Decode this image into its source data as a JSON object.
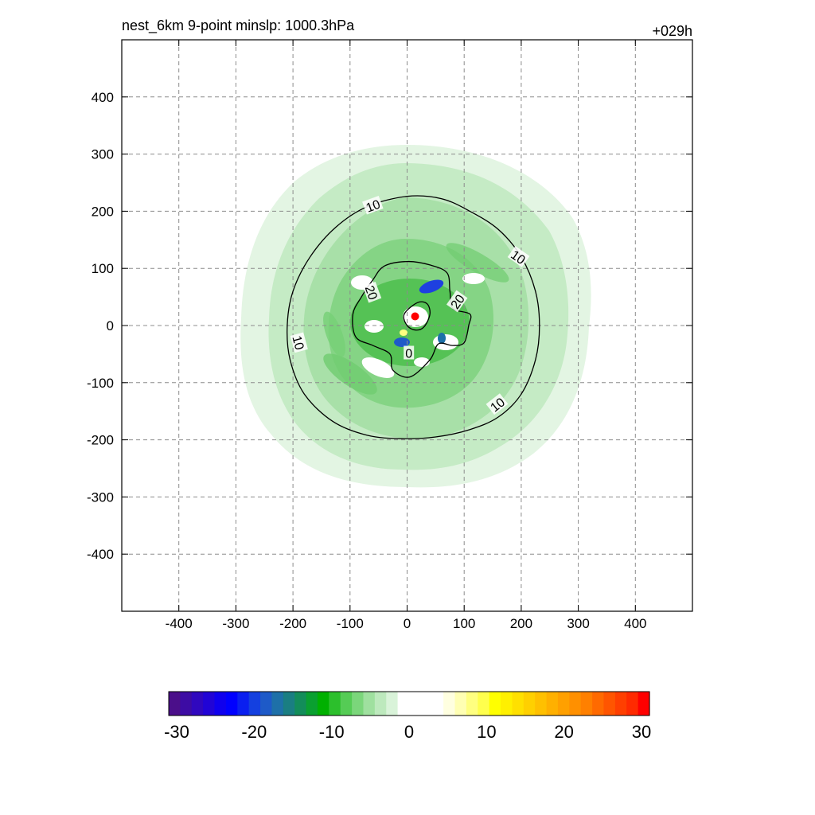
{
  "chart_data": {
    "type": "heatmap",
    "title": "nest_6km  9-point minslp: 1000.3hPa",
    "time_label": "+029h",
    "xlim": [
      -500,
      500
    ],
    "ylim": [
      -500,
      500
    ],
    "x_ticks": [
      -400,
      -300,
      -200,
      -100,
      0,
      100,
      200,
      300,
      400
    ],
    "y_ticks": [
      400,
      300,
      200,
      100,
      0,
      -100,
      -200,
      -300,
      -400
    ],
    "grid": true,
    "storm_center": [
      14,
      16
    ],
    "contours": [
      {
        "level": "10",
        "points": [
          [
            0,
            226
          ],
          [
            60,
            222
          ],
          [
            110,
            200
          ],
          [
            160,
            168
          ],
          [
            200,
            120
          ],
          [
            225,
            60
          ],
          [
            232,
            0
          ],
          [
            225,
            -60
          ],
          [
            200,
            -120
          ],
          [
            160,
            -160
          ],
          [
            110,
            -182
          ],
          [
            50,
            -195
          ],
          [
            -10,
            -198
          ],
          [
            -70,
            -192
          ],
          [
            -130,
            -168
          ],
          [
            -180,
            -120
          ],
          [
            -205,
            -60
          ],
          [
            -210,
            0
          ],
          [
            -200,
            60
          ],
          [
            -170,
            120
          ],
          [
            -125,
            172
          ],
          [
            -70,
            208
          ]
        ]
      },
      {
        "level": "20",
        "points": [
          [
            -40,
            104
          ],
          [
            0,
            112
          ],
          [
            40,
            106
          ],
          [
            70,
            92
          ],
          [
            75,
            60
          ],
          [
            80,
            30
          ],
          [
            110,
            20
          ],
          [
            108,
            0
          ],
          [
            100,
            -30
          ],
          [
            80,
            -35
          ],
          [
            55,
            -32
          ],
          [
            40,
            -60
          ],
          [
            5,
            -90
          ],
          [
            -25,
            -78
          ],
          [
            -30,
            -50
          ],
          [
            -60,
            -35
          ],
          [
            -90,
            -20
          ],
          [
            -95,
            20
          ],
          [
            -80,
            50
          ],
          [
            -60,
            80
          ]
        ]
      },
      {
        "level": "",
        "points": [
          [
            18,
            40
          ],
          [
            35,
            38
          ],
          [
            40,
            20
          ],
          [
            30,
            -2
          ],
          [
            15,
            -8
          ],
          [
            0,
            0
          ],
          [
            -5,
            20
          ]
        ]
      }
    ],
    "contour_labels": [
      {
        "text": "10",
        "x": -60,
        "y": 210,
        "angle": -20
      },
      {
        "text": "10",
        "x": 195,
        "y": 120,
        "angle": 35
      },
      {
        "text": "10",
        "x": -190,
        "y": -30,
        "angle": 75
      },
      {
        "text": "10",
        "x": 158,
        "y": -138,
        "angle": -38
      },
      {
        "text": "20",
        "x": -62,
        "y": 58,
        "angle": 70
      },
      {
        "text": "20",
        "x": 88,
        "y": 42,
        "angle": -55
      },
      {
        "text": "0",
        "x": 3,
        "y": -48,
        "angle": 0
      }
    ],
    "colorbar": {
      "ticks": [
        "-30",
        "-20",
        "-10",
        "0",
        "10",
        "20",
        "30"
      ],
      "colors": [
        "#4b0f8a",
        "#3d0ca4",
        "#3008bf",
        "#2104d6",
        "#0f00ee",
        "#0000ff",
        "#0a1ff0",
        "#1440e0",
        "#1e5ac8",
        "#1e70a8",
        "#1a7e82",
        "#138d5a",
        "#0aa030",
        "#00b000",
        "#2cbf2c",
        "#55cc55",
        "#7bd67b",
        "#9fe09f",
        "#bde9bd",
        "#d9f3d9",
        "#ffffff",
        "#ffffff",
        "#ffffff",
        "#ffffff",
        "#ffffe0",
        "#ffffb3",
        "#ffff80",
        "#ffff4d",
        "#ffff00",
        "#fff000",
        "#ffe000",
        "#ffd000",
        "#ffc000",
        "#ffb000",
        "#ffa000",
        "#ff9000",
        "#ff8000",
        "#ff6a00",
        "#ff5500",
        "#ff3f00",
        "#ff2a00",
        "#ff0000"
      ]
    }
  }
}
